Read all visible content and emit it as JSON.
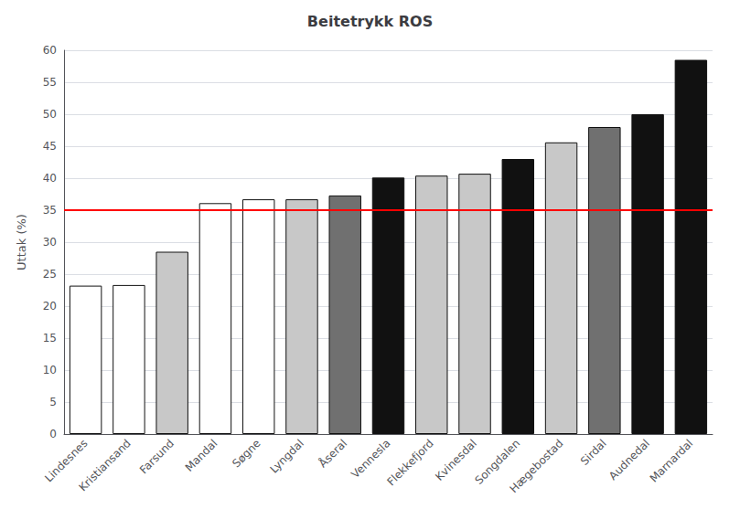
{
  "chart_data": {
    "type": "bar",
    "title": "Beitetrykk ROS",
    "ylabel": "Uttak (%)",
    "categories": [
      "Lindesnes",
      "Kristiansand",
      "Farsund",
      "Mandal",
      "Søgne",
      "Lyngdal",
      "Åseral",
      "Vennesla",
      "Flekkefjord",
      "Kvinesdal",
      "Songdalen",
      "Hægebostad",
      "Sirdal",
      "Audnedal",
      "Marnardal"
    ],
    "values": [
      23.2,
      23.3,
      28.5,
      36.1,
      36.7,
      36.7,
      37.3,
      40.1,
      40.4,
      40.7,
      43.0,
      45.6,
      48.0,
      50.0,
      58.5
    ],
    "colors": [
      "#ffffff",
      "#ffffff",
      "#c8c8c8",
      "#ffffff",
      "#ffffff",
      "#c8c8c8",
      "#707070",
      "#111111",
      "#c8c8c8",
      "#c8c8c8",
      "#111111",
      "#c8c8c8",
      "#707070",
      "#111111",
      "#111111"
    ],
    "reference_line": {
      "value": 35.0,
      "color": "#ff0000"
    },
    "ylim": [
      0,
      60
    ],
    "yticks": [
      0,
      5,
      10,
      15,
      20,
      25,
      30,
      35,
      40,
      45,
      50,
      55,
      60
    ],
    "grid": true
  }
}
